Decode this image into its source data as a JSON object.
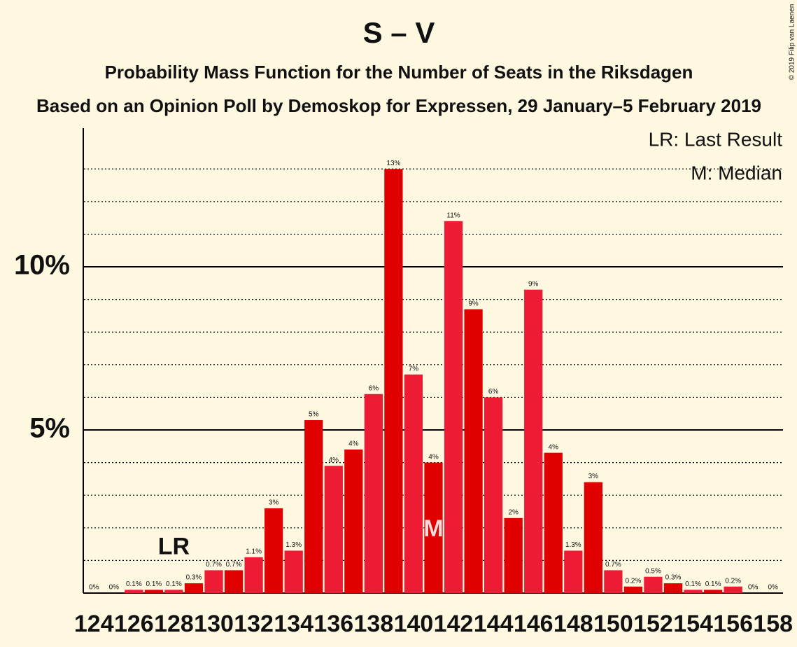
{
  "chart_data": {
    "type": "bar",
    "title": "S – V",
    "subtitle": "Probability Mass Function for the Number of Seats in the Riksdagen",
    "subtitle2": "Based on an Opinion Poll by Demoskop for Expressen, 29 January–5 February 2019",
    "copyright": "© 2019 Filip van Laenen",
    "legend": [
      "LR: Last Result",
      "M: Median"
    ],
    "categories": [
      124,
      null,
      126,
      null,
      128,
      null,
      130,
      null,
      132,
      null,
      134,
      null,
      136,
      null,
      138,
      null,
      140,
      null,
      142,
      null,
      144,
      null,
      146,
      null,
      148,
      null,
      150,
      null,
      152,
      null,
      154,
      null,
      156,
      null,
      158
    ],
    "values": [
      0,
      0,
      0.1,
      0.1,
      0.1,
      0.3,
      0.7,
      0.7,
      1.1,
      2.6,
      1.3,
      5.3,
      3.9,
      4.4,
      6.1,
      13.0,
      6.7,
      4.0,
      11.4,
      8.7,
      6.0,
      2.3,
      9.3,
      4.3,
      1.3,
      3.4,
      0.7,
      0.2,
      0.5,
      0.3,
      0.1,
      0.1,
      0.2,
      0,
      0
    ],
    "value_labels": [
      "0%",
      "0%",
      "0.1%",
      "0.1%",
      "0.1%",
      "0.3%",
      "0.7%",
      "0.7%",
      "1.1%",
      "3%",
      "1.3%",
      "5%",
      "4%",
      "4%",
      "6%",
      "13%",
      "7%",
      "4%",
      "11%",
      "9%",
      "6%",
      "2%",
      "9%",
      "4%",
      "1.3%",
      "3%",
      "0.7%",
      "0.2%",
      "0.5%",
      "0.3%",
      "0.1%",
      "0.1%",
      "0.2%",
      "0%",
      "0%"
    ],
    "colors": [
      "#ed1b34",
      "#e00000"
    ],
    "ylim": [
      0,
      14.25
    ],
    "yticks": [
      {
        "value": 5,
        "label": "5%"
      },
      {
        "value": 10,
        "label": "10%"
      }
    ],
    "minor_yticks": [
      1,
      2,
      3,
      4,
      6,
      7,
      8,
      9,
      11,
      12,
      13
    ],
    "markers": [
      {
        "label": "LR",
        "index": 4
      },
      {
        "label": "M",
        "index": 17
      }
    ]
  }
}
